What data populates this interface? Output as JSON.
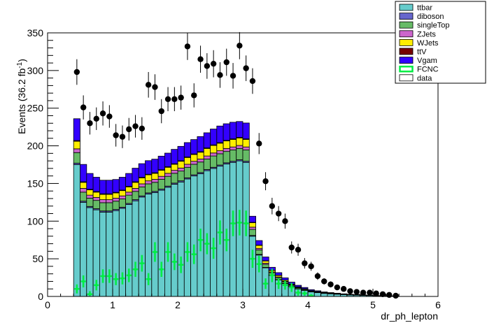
{
  "chart_data": {
    "type": "bar",
    "stacked": true,
    "xlabel": "dr_ph_lepton",
    "ylabel": "Events (36.2 fb",
    "ylabel_sup": "-1",
    "ylabel_close": ")",
    "xlim": [
      0,
      6
    ],
    "ylim": [
      0,
      350
    ],
    "x_ticks": [
      0,
      1,
      2,
      3,
      4,
      5,
      6
    ],
    "y_ticks": [
      0,
      50,
      100,
      150,
      200,
      250,
      300,
      350
    ],
    "legend_position": "top-right",
    "bin_width": 0.1,
    "x": [
      0.45,
      0.55,
      0.65,
      0.75,
      0.85,
      0.95,
      1.05,
      1.15,
      1.25,
      1.35,
      1.45,
      1.55,
      1.65,
      1.75,
      1.85,
      1.95,
      2.05,
      2.15,
      2.25,
      2.35,
      2.45,
      2.55,
      2.65,
      2.75,
      2.85,
      2.95,
      3.05,
      3.15,
      3.25,
      3.35,
      3.45,
      3.55,
      3.65,
      3.75,
      3.85,
      3.95,
      4.05,
      4.15,
      4.25,
      4.35,
      4.45,
      4.55,
      4.65,
      4.75,
      4.85,
      4.95,
      5.05,
      5.15,
      5.25,
      5.35
    ],
    "series": [
      {
        "name": "ttbar",
        "color": "#66cccc",
        "values": [
          175,
          125,
          118,
          115,
          112,
          112,
          114,
          117,
          122,
          127,
          132,
          136,
          138,
          141,
          145,
          149,
          152,
          156,
          160,
          163,
          167,
          170,
          173,
          176,
          178,
          180,
          178,
          80,
          55,
          38,
          28,
          22,
          17,
          13,
          10,
          8,
          6,
          5,
          4,
          3.5,
          3,
          2.5,
          2,
          1.7,
          1.4,
          1.2,
          1,
          0.7,
          0.5,
          0.3
        ]
      },
      {
        "name": "diboson",
        "color": "#6666cc",
        "values": [
          2,
          1.5,
          1.5,
          1.5,
          1.5,
          1.5,
          1.5,
          1.5,
          1.5,
          1.5,
          1.5,
          1.5,
          1.5,
          1.5,
          1.5,
          1.5,
          1.5,
          1.5,
          1.5,
          1.5,
          1.5,
          1.5,
          1.5,
          1.5,
          1.5,
          1.5,
          1.5,
          1,
          0.8,
          0.6,
          0.5,
          0.4,
          0.3,
          0.3,
          0.2,
          0.2,
          0.1,
          0.1,
          0.1,
          0.1,
          0.1,
          0.1,
          0.1,
          0.1,
          0.1,
          0.1,
          0,
          0,
          0,
          0
        ]
      },
      {
        "name": "singleTop",
        "color": "#66bb66",
        "values": [
          14,
          12,
          11,
          11,
          11,
          11,
          11,
          11,
          11,
          11,
          12,
          12,
          12,
          13,
          13,
          13,
          13,
          14,
          14,
          14,
          14,
          15,
          15,
          15,
          15,
          15,
          15,
          8,
          6,
          4,
          3,
          2.5,
          2,
          1.5,
          1.2,
          1,
          0.8,
          0.7,
          0.6,
          0.5,
          0.4,
          0.3,
          0.3,
          0.2,
          0.2,
          0.2,
          0.1,
          0.1,
          0.1,
          0.1
        ]
      },
      {
        "name": "ZJets",
        "color": "#cc66cc",
        "values": [
          5,
          5,
          4,
          4,
          4,
          4,
          4,
          4,
          4,
          4,
          4,
          4,
          4,
          4,
          4,
          4,
          4,
          4,
          4,
          4,
          4,
          4,
          4,
          4,
          4,
          4,
          4,
          3,
          2,
          1.5,
          1,
          1,
          0.8,
          0.6,
          0.5,
          0.4,
          0.3,
          0.3,
          0.2,
          0.2,
          0.1,
          0.1,
          0.1,
          0.1,
          0.1,
          0,
          0,
          0,
          0,
          0
        ]
      },
      {
        "name": "WJets",
        "color": "#ffee00",
        "values": [
          10,
          8,
          7,
          7,
          7,
          7,
          7,
          7,
          7,
          8,
          8,
          8,
          8,
          8,
          8,
          8,
          9,
          9,
          9,
          9,
          10,
          10,
          10,
          10,
          10,
          10,
          10,
          6,
          4,
          3,
          2,
          2,
          1.5,
          1,
          0.8,
          0.6,
          0.5,
          0.4,
          0.3,
          0.2,
          0.2,
          0.1,
          0.1,
          0.1,
          0.1,
          0,
          0,
          0,
          0,
          0
        ]
      },
      {
        "name": "ttV",
        "color": "#770000",
        "values": [
          1,
          0.8,
          0.8,
          0.8,
          0.8,
          0.8,
          0.8,
          0.8,
          0.8,
          0.8,
          0.8,
          0.8,
          0.8,
          0.8,
          0.8,
          0.8,
          0.8,
          0.8,
          0.8,
          0.8,
          0.8,
          0.8,
          0.8,
          0.8,
          0.8,
          0.8,
          0.8,
          0.5,
          0.4,
          0.3,
          0.2,
          0.2,
          0.1,
          0.1,
          0.1,
          0.1,
          0,
          0,
          0,
          0,
          0,
          0,
          0,
          0,
          0,
          0,
          0,
          0,
          0,
          0
        ]
      },
      {
        "name": "Vgam",
        "color": "#3300ff",
        "values": [
          29,
          23,
          21,
          19,
          18,
          18,
          17,
          17,
          17,
          18,
          18,
          18,
          18,
          18,
          18,
          19,
          19,
          19,
          19,
          20,
          20,
          21,
          22,
          22,
          22,
          21,
          21,
          8,
          6,
          5,
          4,
          3.5,
          3,
          2.5,
          2,
          1.6,
          1.3,
          1,
          0.8,
          0.6,
          0.5,
          0.4,
          0.3,
          0.2,
          0.2,
          0.1,
          0.1,
          0.1,
          0.1,
          0
        ]
      }
    ],
    "fcnc": {
      "name": "FCNC",
      "color": "#00ee44",
      "values": [
        10,
        20,
        3,
        15,
        27,
        27,
        23,
        24,
        28,
        36,
        44,
        23,
        59,
        36,
        59,
        46,
        42,
        59,
        56,
        75,
        70,
        64,
        85,
        75,
        97,
        98,
        97,
        50,
        43,
        17,
        28,
        17,
        15,
        12,
        5,
        4,
        1,
        0,
        0,
        0,
        0,
        0,
        0,
        0,
        0,
        0,
        0,
        0,
        0,
        0
      ],
      "err": [
        6,
        8,
        4,
        7,
        9,
        9,
        8,
        8,
        9,
        10,
        11,
        8,
        13,
        10,
        13,
        11,
        11,
        13,
        13,
        15,
        14,
        14,
        16,
        15,
        17,
        17,
        17,
        12,
        11,
        7,
        9,
        7,
        6,
        6,
        4,
        3,
        2,
        0,
        0,
        0,
        0,
        0,
        0,
        0,
        0,
        0,
        0,
        0,
        0,
        0
      ]
    },
    "data": {
      "name": "data",
      "values": [
        298,
        251,
        230,
        236,
        243,
        239,
        214,
        212,
        222,
        226,
        223,
        281,
        278,
        246,
        262,
        262,
        264,
        332,
        267,
        315,
        306,
        309,
        294,
        311,
        293,
        333,
        303,
        286,
        203,
        153,
        120,
        110,
        100,
        65,
        62,
        44,
        40,
        27,
        20,
        16,
        12,
        10,
        7,
        6,
        5,
        5,
        4,
        3,
        2,
        1
      ],
      "err": [
        17,
        16,
        15,
        15,
        16,
        15,
        15,
        15,
        15,
        15,
        15,
        17,
        17,
        16,
        16,
        16,
        16,
        18,
        16,
        18,
        17,
        18,
        17,
        18,
        17,
        18,
        17,
        17,
        14,
        12,
        11,
        10,
        10,
        8,
        8,
        7,
        6,
        5,
        4,
        4,
        3,
        3,
        3,
        2,
        2,
        2,
        2,
        2,
        1,
        1
      ]
    },
    "legend": [
      "ttbar",
      "diboson",
      "singleTop",
      "ZJets",
      "WJets",
      "ttV",
      "Vgam",
      "FCNC",
      "data"
    ]
  }
}
